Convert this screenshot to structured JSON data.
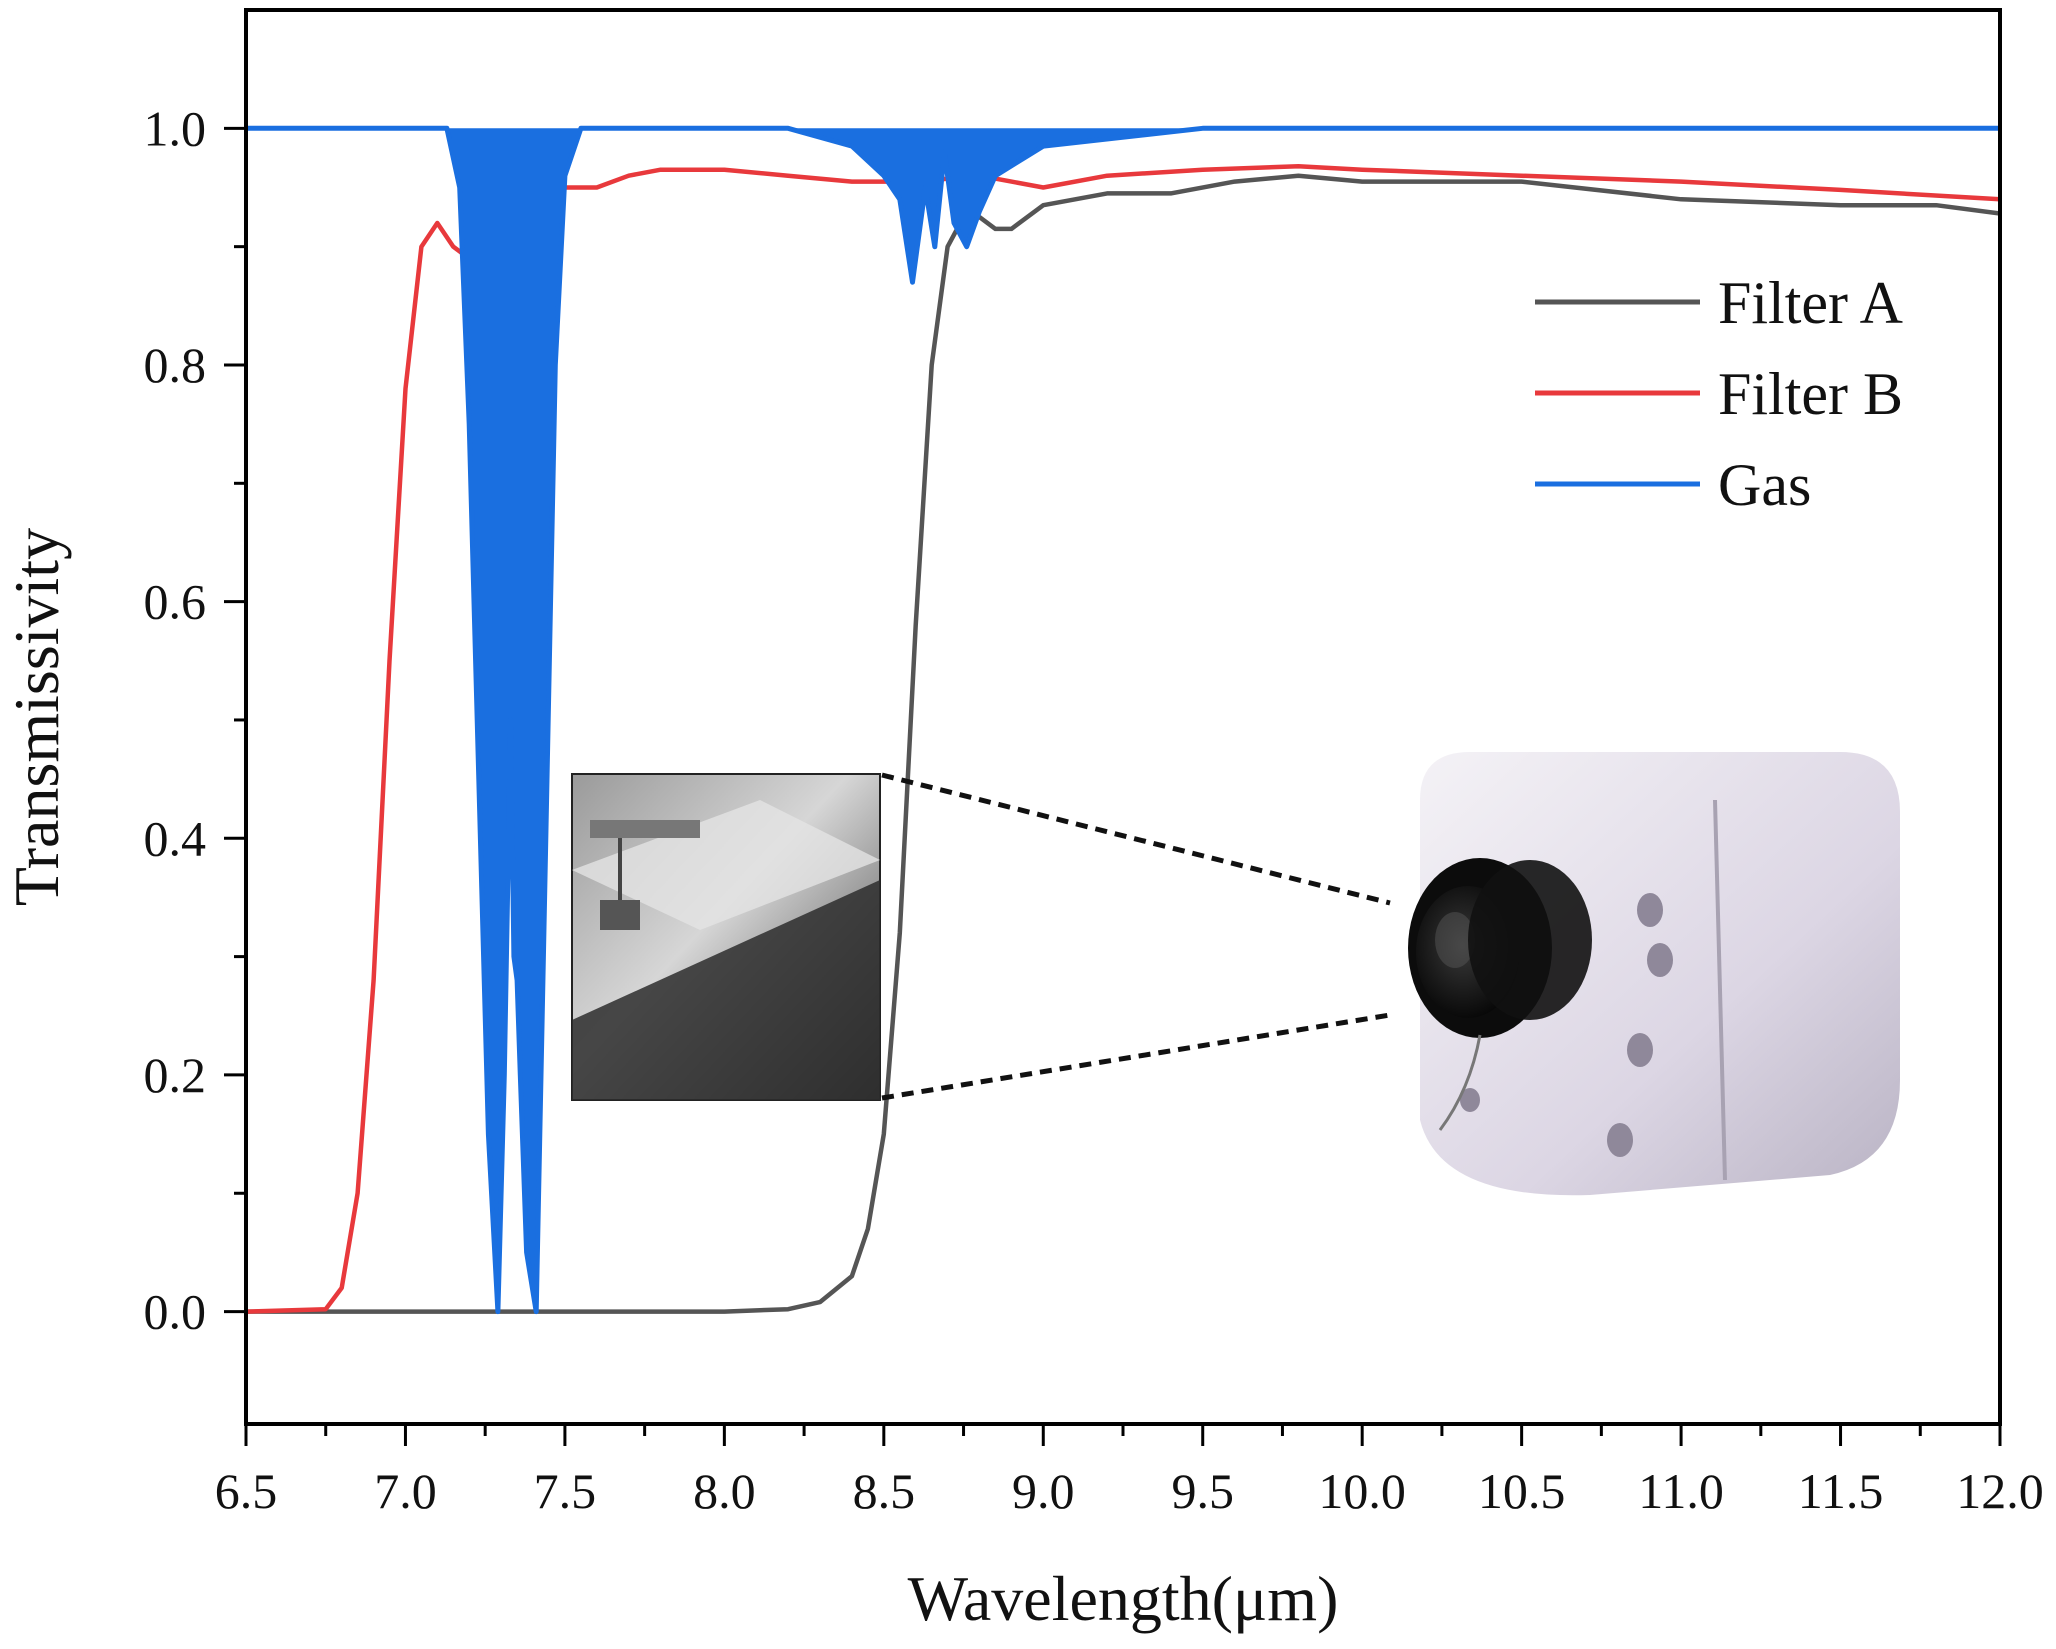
{
  "chart_data": {
    "type": "line",
    "xlabel": "Wavelength(μm)",
    "ylabel": "Transmissivity",
    "xlim": [
      6.5,
      12.0
    ],
    "ylim": [
      -0.095,
      1.1
    ],
    "grid": false,
    "legend_position": "top-right",
    "x_ticks": [
      "6.5",
      "7.0",
      "7.5",
      "8.0",
      "8.5",
      "9.0",
      "9.5",
      "10.0",
      "10.5",
      "11.0",
      "11.5",
      "12.0"
    ],
    "y_ticks": [
      "0.0",
      "0.2",
      "0.4",
      "0.6",
      "0.8",
      "1.0"
    ],
    "legend": [
      "Filter A",
      "Filter B",
      "Gas"
    ],
    "colors": {
      "filter_a": "#555555",
      "filter_b": "#e8393c",
      "gas": "#1a6fe0"
    },
    "series": [
      {
        "name": "Filter A",
        "x": [
          6.5,
          7.0,
          7.5,
          8.0,
          8.2,
          8.3,
          8.4,
          8.45,
          8.5,
          8.55,
          8.6,
          8.65,
          8.7,
          8.75,
          8.8,
          8.85,
          8.9,
          9.0,
          9.1,
          9.2,
          9.4,
          9.6,
          9.8,
          10.0,
          10.5,
          11.0,
          11.5,
          11.8,
          12.0
        ],
        "y": [
          0.0,
          0.0,
          0.0,
          0.0,
          0.002,
          0.008,
          0.03,
          0.07,
          0.15,
          0.32,
          0.58,
          0.8,
          0.9,
          0.925,
          0.925,
          0.915,
          0.915,
          0.935,
          0.94,
          0.945,
          0.945,
          0.955,
          0.96,
          0.955,
          0.955,
          0.94,
          0.935,
          0.935,
          0.928
        ]
      },
      {
        "name": "Filter B",
        "x": [
          6.5,
          6.75,
          6.8,
          6.85,
          6.9,
          6.95,
          7.0,
          7.05,
          7.1,
          7.15,
          7.2,
          7.3,
          7.4,
          7.5,
          7.6,
          7.7,
          7.8,
          8.0,
          8.2,
          8.4,
          8.6,
          8.8,
          8.9,
          9.0,
          9.2,
          9.5,
          9.8,
          10.0,
          10.5,
          11.0,
          11.5,
          12.0
        ],
        "y": [
          0.0,
          0.002,
          0.02,
          0.1,
          0.28,
          0.55,
          0.78,
          0.9,
          0.92,
          0.9,
          0.89,
          0.93,
          0.95,
          0.95,
          0.95,
          0.96,
          0.965,
          0.965,
          0.96,
          0.955,
          0.955,
          0.96,
          0.955,
          0.95,
          0.96,
          0.965,
          0.968,
          0.965,
          0.96,
          0.955,
          0.948,
          0.94
        ]
      },
      {
        "name": "Gas",
        "x": [
          6.5,
          7.13,
          7.17,
          7.2,
          7.23,
          7.26,
          7.29,
          7.31,
          7.33,
          7.34,
          7.35,
          7.36,
          7.38,
          7.41,
          7.44,
          7.47,
          7.5,
          7.55,
          8.2,
          8.4,
          8.5,
          8.55,
          8.59,
          8.63,
          8.66,
          8.69,
          8.72,
          8.76,
          8.8,
          8.85,
          9.0,
          9.5,
          12.0
        ],
        "y": [
          1.0,
          1.0,
          0.95,
          0.75,
          0.45,
          0.15,
          0.0,
          0.2,
          0.5,
          0.3,
          0.28,
          0.2,
          0.05,
          0.0,
          0.4,
          0.8,
          0.96,
          1.0,
          1.0,
          0.985,
          0.96,
          0.94,
          0.87,
          0.95,
          0.9,
          0.98,
          0.92,
          0.9,
          0.93,
          0.96,
          0.985,
          1.0,
          1.0
        ]
      }
    ]
  }
}
